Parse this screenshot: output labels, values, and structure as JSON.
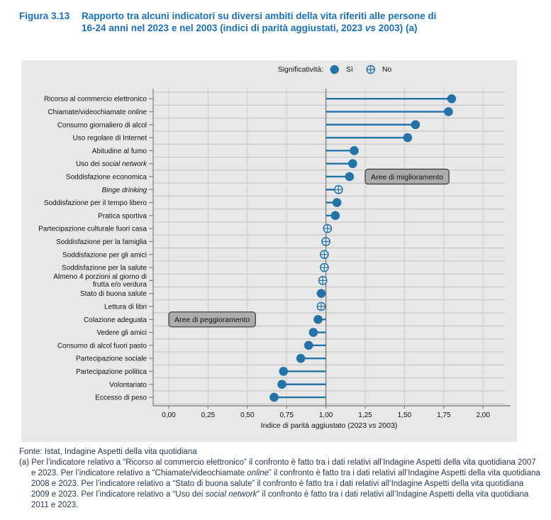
{
  "figure": {
    "label": "Figura 3.13",
    "title_line1": "Rapporto tra alcuni indicatori su diversi ambiti della vita riferiti alle persone di",
    "title_line2_segments": [
      {
        "t": "16-24 anni nel 2023 e nel 2003 (indici di parità aggiustati, 2023 "
      },
      {
        "t": "vs",
        "i": true
      },
      {
        "t": " 2003) (a)"
      }
    ]
  },
  "legend": {
    "title": "Significatività:",
    "items": [
      {
        "label": "Sì",
        "marker": "filled-circle"
      },
      {
        "label": "No",
        "marker": "open-circle-cross"
      }
    ]
  },
  "chart_data": {
    "type": "scatter",
    "subtype": "horizontal-lollipop",
    "xlabel_segments": [
      {
        "t": "Indice di parità aggiustato (2023 "
      },
      {
        "t": "vs",
        "i": true
      },
      {
        "t": " 2003)"
      }
    ],
    "xlim": [
      0,
      2.15
    ],
    "baseline": 1.0,
    "grid": true,
    "x_ticks": [
      {
        "v": 0,
        "label": "0,00"
      },
      {
        "v": 0.25,
        "label": "0,25"
      },
      {
        "v": 0.5,
        "label": "0,50"
      },
      {
        "v": 0.75,
        "label": "0,75"
      },
      {
        "v": 1,
        "label": "1,00"
      },
      {
        "v": 1.25,
        "label": "1,25"
      },
      {
        "v": 1.5,
        "label": "1,50"
      },
      {
        "v": 1.75,
        "label": "1,75"
      },
      {
        "v": 2,
        "label": "2,00"
      }
    ],
    "categories": [
      {
        "lines": [
          [
            {
              "t": "Ricorso al commercio elettronico"
            }
          ]
        ],
        "value": 1.8,
        "sig": true
      },
      {
        "lines": [
          [
            {
              "t": "Chiamate/videochiamate "
            },
            {
              "t": "online",
              "i": true
            }
          ]
        ],
        "value": 1.78,
        "sig": true
      },
      {
        "lines": [
          [
            {
              "t": "Consumo giornaliero di alcol"
            }
          ]
        ],
        "value": 1.57,
        "sig": true
      },
      {
        "lines": [
          [
            {
              "t": "Uso regolare di Internet"
            }
          ]
        ],
        "value": 1.52,
        "sig": true
      },
      {
        "lines": [
          [
            {
              "t": "Abitudine al fumo"
            }
          ]
        ],
        "value": 1.18,
        "sig": true
      },
      {
        "lines": [
          [
            {
              "t": "Uso dei "
            },
            {
              "t": "social network",
              "i": true
            }
          ]
        ],
        "value": 1.17,
        "sig": true
      },
      {
        "lines": [
          [
            {
              "t": "Soddisfazione economica"
            }
          ]
        ],
        "value": 1.15,
        "sig": true
      },
      {
        "lines": [
          [
            {
              "t": "Binge drinking",
              "i": true
            }
          ]
        ],
        "value": 1.08,
        "sig": false
      },
      {
        "lines": [
          [
            {
              "t": "Soddisfazione per il tempo libero"
            }
          ]
        ],
        "value": 1.07,
        "sig": true
      },
      {
        "lines": [
          [
            {
              "t": "Pratica sportiva"
            }
          ]
        ],
        "value": 1.06,
        "sig": true
      },
      {
        "lines": [
          [
            {
              "t": "Partecipazione culturale fuori casa"
            }
          ]
        ],
        "value": 1.01,
        "sig": false
      },
      {
        "lines": [
          [
            {
              "t": "Soddisfazione per la famiglia"
            }
          ]
        ],
        "value": 1.0,
        "sig": false
      },
      {
        "lines": [
          [
            {
              "t": "Soddisfazione per gli amici"
            }
          ]
        ],
        "value": 0.99,
        "sig": false
      },
      {
        "lines": [
          [
            {
              "t": "Soddisfazione per la salute"
            }
          ]
        ],
        "value": 0.99,
        "sig": false
      },
      {
        "lines": [
          [
            {
              "t": "Almeno 4 porzioni al giorno di"
            }
          ],
          [
            {
              "t": "frutta e/o verdura"
            }
          ]
        ],
        "value": 0.98,
        "sig": false
      },
      {
        "lines": [
          [
            {
              "t": "Stato di buona salute"
            }
          ]
        ],
        "value": 0.97,
        "sig": true
      },
      {
        "lines": [
          [
            {
              "t": "Lettura di libri"
            }
          ]
        ],
        "value": 0.97,
        "sig": false
      },
      {
        "lines": [
          [
            {
              "t": "Colazione adeguata"
            }
          ]
        ],
        "value": 0.95,
        "sig": true
      },
      {
        "lines": [
          [
            {
              "t": "Vedere gli amici"
            }
          ]
        ],
        "value": 0.92,
        "sig": true
      },
      {
        "lines": [
          [
            {
              "t": "Consumo di alcol fuori pasto"
            }
          ]
        ],
        "value": 0.89,
        "sig": true
      },
      {
        "lines": [
          [
            {
              "t": "Partecipazione sociale"
            }
          ]
        ],
        "value": 0.84,
        "sig": true
      },
      {
        "lines": [
          [
            {
              "t": "Partecipazione politica"
            }
          ]
        ],
        "value": 0.73,
        "sig": true
      },
      {
        "lines": [
          [
            {
              "t": "Volontariato"
            }
          ]
        ],
        "value": 0.72,
        "sig": true
      },
      {
        "lines": [
          [
            {
              "t": "Eccesso di peso"
            }
          ]
        ],
        "value": 0.67,
        "sig": true
      }
    ],
    "annotations": [
      {
        "text": "Aree di miglioramento",
        "row": 6,
        "x_value": 1.25
      },
      {
        "text": "Aree di peggioramento",
        "row": 17,
        "x_value": 0
      }
    ]
  },
  "footer": {
    "fonte": "Fonte: Istat, Indagine Aspetti della vita quotidiana",
    "footnote_segments": [
      {
        "t": "(a) Per l’indicatore relativo a “Ricorso al commercio elettronico” il confronto è fatto tra i dati relativi all’Indagine Aspetti della vita quotidiana 2007 e 2023. Per l’indicatore relativo a “Chiamate/videochiamate "
      },
      {
        "t": "online",
        "i": true
      },
      {
        "t": "” il confronto è fatto tra i dati relativi all’Indagine Aspetti della vita quotidiana 2008 e 2023. Per l’indicatore relativo a “Stato di buona salute” il confronto è fatto tra i dati relativi all’Indagine Aspetti della vita quotidiana 2009 e 2023. Per l’indicatore relativo a “Uso dei "
      },
      {
        "t": "social network",
        "i": true
      },
      {
        "t": "” il confronto è fatto tra i dati relativi all’Indagine Aspetti della vita quotidiana 2011 e 2023."
      }
    ]
  },
  "colors": {
    "accent": "#2473a6",
    "panel_bg": "#e8e8e8",
    "grid_h": "#bfbfbf",
    "grid_v": "#cccccc",
    "axis": "#828282",
    "title": "#1a70b8",
    "footer_text": "#25384a",
    "annotation_bg": "#acacac",
    "annotation_border": "#3f3f3f"
  }
}
